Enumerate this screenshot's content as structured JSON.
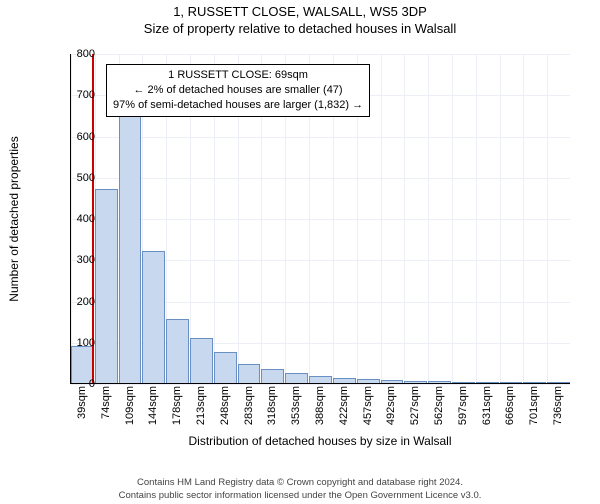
{
  "header": {
    "address": "1, RUSSETT CLOSE, WALSALL, WS5 3DP",
    "subtitle": "Size of property relative to detached houses in Walsall"
  },
  "chart": {
    "type": "histogram",
    "xlabel": "Distribution of detached houses by size in Walsall",
    "ylabel": "Number of detached properties",
    "ylim": [
      0,
      800
    ],
    "ytick_step": 100,
    "yticks": [
      0,
      100,
      200,
      300,
      400,
      500,
      600,
      700,
      800
    ],
    "xticks": [
      "39sqm",
      "74sqm",
      "109sqm",
      "144sqm",
      "178sqm",
      "213sqm",
      "248sqm",
      "283sqm",
      "318sqm",
      "353sqm",
      "388sqm",
      "422sqm",
      "457sqm",
      "492sqm",
      "527sqm",
      "562sqm",
      "597sqm",
      "631sqm",
      "666sqm",
      "701sqm",
      "736sqm"
    ],
    "bar_values": [
      90,
      470,
      650,
      320,
      155,
      110,
      75,
      45,
      35,
      25,
      18,
      12,
      10,
      8,
      6,
      4,
      3,
      2,
      2,
      1,
      1
    ],
    "bar_color": "#c8d8ee",
    "bar_border": "#6a8fc2",
    "grid_color": "#eceff5",
    "axis_color": "#000000",
    "background_color": "#ffffff",
    "marker": {
      "position_index": 0.9,
      "color": "#cc0000"
    },
    "infobox": {
      "line1": "1 RUSSETT CLOSE: 69sqm",
      "line2": "← 2% of detached houses are smaller (47)",
      "line3": "97% of semi-detached houses are larger (1,832) →",
      "border_color": "#000000",
      "background": "#ffffff",
      "fontsize": 11
    },
    "label_fontsize": 12,
    "tick_fontsize": 11
  },
  "footer": {
    "line1": "Contains HM Land Registry data © Crown copyright and database right 2024.",
    "line2": "Contains public sector information licensed under the Open Government Licence v3.0."
  }
}
